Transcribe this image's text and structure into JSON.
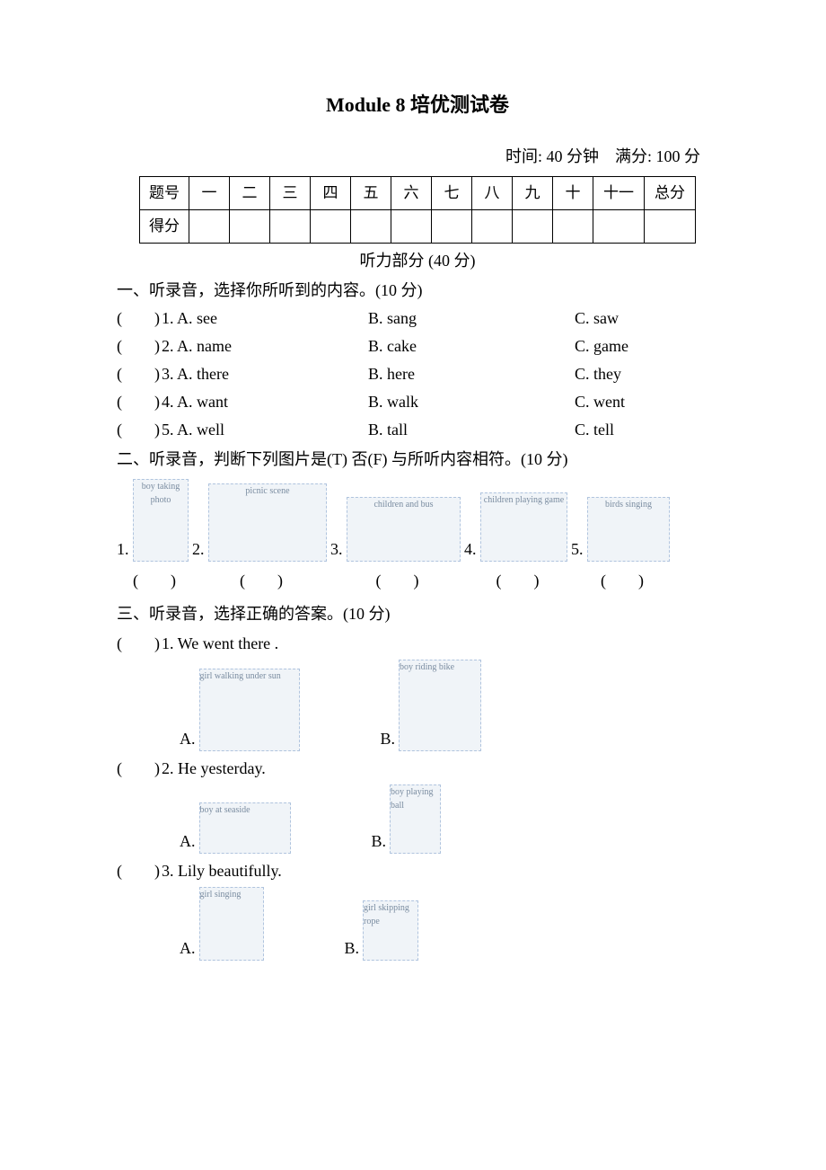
{
  "title": "Module 8  培优测试卷",
  "meta": {
    "time": "时间: 40 分钟",
    "full": "满分: 100 分"
  },
  "table": {
    "row1_label": "题号",
    "row2_label": "得分",
    "cols": [
      "一",
      "二",
      "三",
      "四",
      "五",
      "六",
      "七",
      "八",
      "九",
      "十",
      "十一",
      "总分"
    ]
  },
  "listening_header": "听力部分  (40 分)",
  "sec1": {
    "instr": "一、听录音，选择你所听到的内容。(10  分)",
    "items": [
      {
        "n": "1",
        "a": "A. see",
        "b": "B. sang",
        "c": "C. saw"
      },
      {
        "n": "2",
        "a": "A. name",
        "b": "B. cake",
        "c": "C. game"
      },
      {
        "n": "3",
        "a": "A. there",
        "b": "B. here",
        "c": "C. they"
      },
      {
        "n": "4",
        "a": "A. want",
        "b": "B. walk",
        "c": "C. went"
      },
      {
        "n": "5",
        "a": "A. well",
        "b": "B. tall",
        "c": "C. tell"
      }
    ],
    "paren": "(　　)"
  },
  "sec2": {
    "instr": "二、听录音，判断下列图片是(T)  否(F)  与所听内容相符。(10  分)",
    "labels": [
      "1.",
      "2.",
      "3.",
      "4.",
      "5."
    ],
    "images": [
      {
        "alt": "boy taking photo",
        "w": 60,
        "h": 90
      },
      {
        "alt": "picnic scene",
        "w": 130,
        "h": 85
      },
      {
        "alt": "children and bus",
        "w": 125,
        "h": 70
      },
      {
        "alt": "children playing game",
        "w": 95,
        "h": 75
      },
      {
        "alt": "birds singing",
        "w": 90,
        "h": 70
      }
    ],
    "paren": "(　　)"
  },
  "sec3": {
    "instr": "三、听录音，选择正确的答案。(10  分)",
    "paren": "(　　)",
    "items": [
      {
        "n": "1",
        "stem": "We went there .",
        "a_alt": "girl walking under sun",
        "a_w": 110,
        "a_h": 90,
        "b_alt": "boy riding bike",
        "b_w": 90,
        "b_h": 100
      },
      {
        "n": "2",
        "stem": "He yesterday.",
        "a_alt": "boy at seaside",
        "a_w": 100,
        "a_h": 55,
        "b_alt": "boy playing ball",
        "b_w": 55,
        "b_h": 75
      },
      {
        "n": "3",
        "stem": "Lily beautifully.",
        "a_alt": "girl singing",
        "a_w": 70,
        "a_h": 80,
        "b_alt": "girl skipping rope",
        "b_w": 60,
        "b_h": 65
      }
    ]
  }
}
